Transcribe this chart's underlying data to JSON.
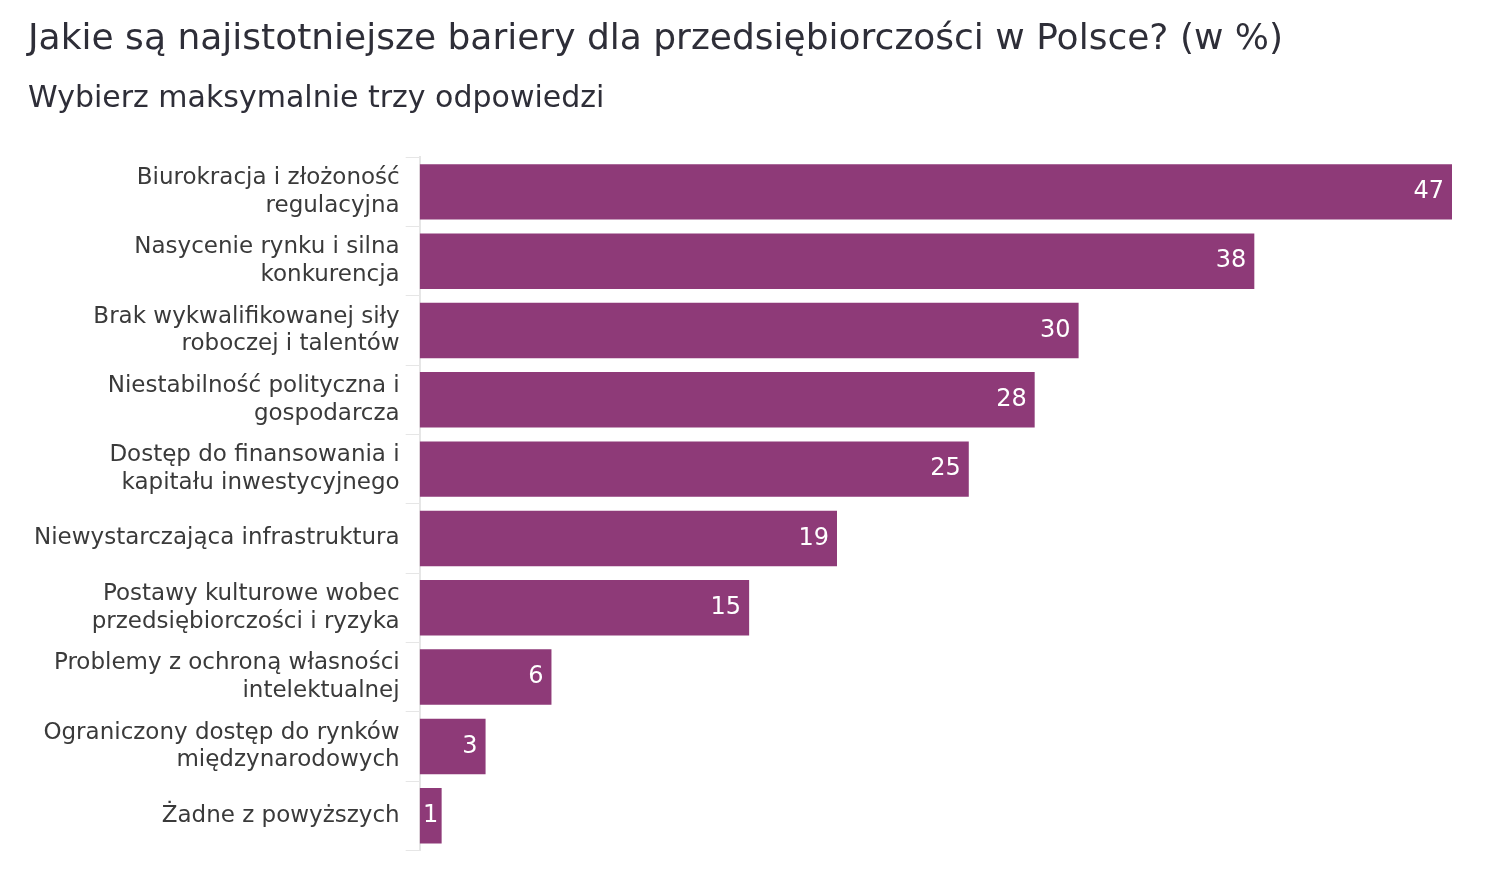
{
  "chart_data": {
    "type": "bar",
    "orientation": "horizontal",
    "title": "Jakie są najistotniejsze bariery dla przedsiębiorczości w Polsce? (w %)",
    "subtitle": "Wybierz maksymalnie trzy odpowiedzi",
    "categories": [
      "Biurokracja i złożoność regulacyjna",
      "Nasycenie rynku i silna konkurencja",
      "Brak wykwalifikowanej siły roboczej i talentów",
      "Niestabilność polityczna i gospodarcza",
      "Dostęp do finansowania i kapitału inwestycyjnego",
      "Niewystarczająca infrastruktura",
      "Postawy kulturowe wobec przedsiębiorczości i ryzyka",
      "Problemy z ochroną własności intelektualnej",
      "Ograniczony dostęp do rynków międzynarodowych",
      "Żadne z powyższych"
    ],
    "values": [
      47,
      38,
      30,
      28,
      25,
      19,
      15,
      6,
      3,
      1
    ],
    "color": "#8e3a78",
    "xlim": [
      0,
      47
    ],
    "data_labels": true,
    "grid": false,
    "legend": false
  }
}
